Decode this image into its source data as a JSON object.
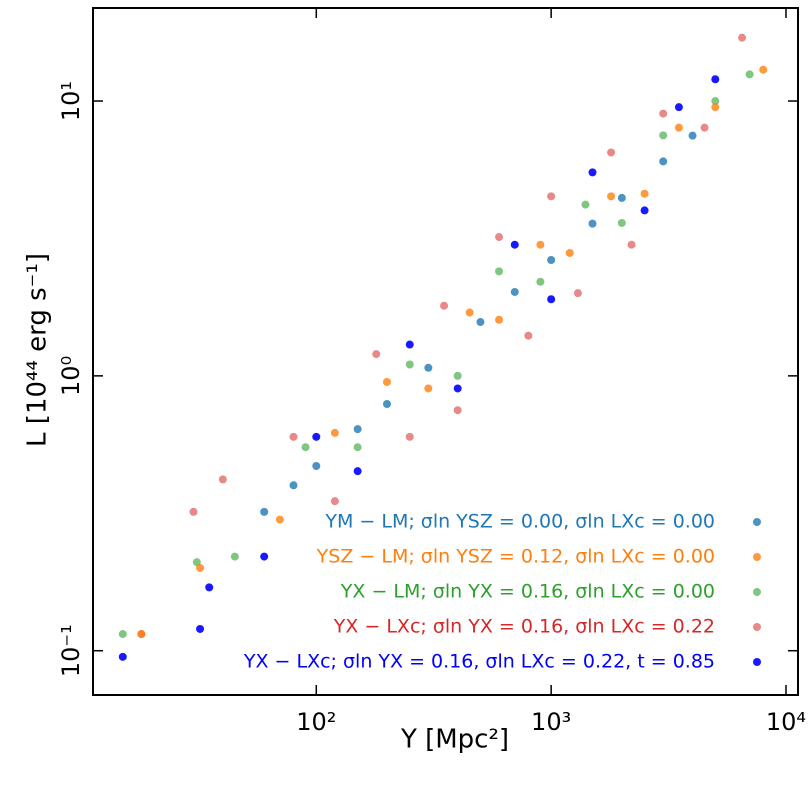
{
  "chart_data": {
    "type": "scatter",
    "x_label": "Y [Mpc²]",
    "y_label": "L [10⁴⁴ erg s⁻¹]",
    "xscale": "log",
    "yscale": "log",
    "xlim": [
      11.2,
      11250
    ],
    "ylim": [
      0.069,
      21.8
    ],
    "xticks": [
      {
        "value": 100,
        "label": "10²"
      },
      {
        "value": 1000,
        "label": "10³"
      },
      {
        "value": 10000,
        "label": "10⁴"
      }
    ],
    "yticks": [
      {
        "value": 0.1,
        "label": "10⁻¹"
      },
      {
        "value": 1,
        "label": "10⁰"
      },
      {
        "value": 10,
        "label": "10¹"
      }
    ],
    "legend": "lower right",
    "series": [
      {
        "name": "YX − LXc; σln YX = 0.16, σln LXc = 0.22",
        "color": "#d62728",
        "opacity": 0.55,
        "x": [
          18,
          30,
          40,
          80,
          120,
          180,
          250,
          350,
          400,
          600,
          800,
          1000,
          1300,
          1800,
          2200,
          3000,
          4500,
          6500
        ],
        "values": [
          0.115,
          0.32,
          0.42,
          0.6,
          0.35,
          1.2,
          0.6,
          1.8,
          0.75,
          3.2,
          1.4,
          4.5,
          2.0,
          6.5,
          3.0,
          9,
          8,
          17
        ]
      },
      {
        "name": "YX − LM; σln YX = 0.16, σln LXc = 0.00",
        "color": "#2ca02c",
        "opacity": 0.6,
        "x": [
          15,
          31,
          45,
          90,
          150,
          250,
          400,
          600,
          900,
          1400,
          2000,
          3000,
          5000,
          7000
        ],
        "values": [
          0.115,
          0.21,
          0.22,
          0.55,
          0.55,
          1.1,
          1.0,
          2.4,
          2.2,
          4.2,
          3.6,
          7.5,
          10,
          12.5
        ]
      },
      {
        "name": "YSZ − LM; σln YSZ = 0.12, σln LXc = 0.00",
        "color": "#ff7f0e",
        "opacity": 0.8,
        "x": [
          18,
          32,
          70,
          120,
          200,
          300,
          450,
          600,
          900,
          1200,
          1800,
          2500,
          3500,
          5000,
          8000
        ],
        "values": [
          0.115,
          0.2,
          0.3,
          0.62,
          0.95,
          0.9,
          1.7,
          1.6,
          3.0,
          2.8,
          4.5,
          4.6,
          8.0,
          9.5,
          13
        ]
      },
      {
        "name": "YM − LM; σln YSZ = 0.00, σln LXc = 0.00",
        "color": "#1f77b4",
        "opacity": 0.8,
        "x": [
          60,
          80,
          100,
          150,
          200,
          300,
          500,
          700,
          1000,
          1500,
          2000,
          3000,
          4000
        ],
        "values": [
          0.32,
          0.4,
          0.47,
          0.64,
          0.79,
          1.07,
          1.57,
          2.02,
          2.64,
          3.58,
          4.44,
          6.03,
          7.48
        ]
      },
      {
        "name": "YX − LXc; σln YX = 0.16, σln LXc = 0.22, t = 0.85",
        "color": "#0000ff",
        "opacity": 0.9,
        "x": [
          15,
          32,
          35,
          60,
          100,
          150,
          250,
          400,
          700,
          1000,
          1500,
          2500,
          3500,
          5000
        ],
        "values": [
          0.095,
          0.12,
          0.17,
          0.22,
          0.6,
          0.45,
          1.3,
          0.9,
          3.0,
          1.9,
          5.5,
          4.0,
          9.5,
          12
        ]
      }
    ],
    "legend_order": [
      3,
      2,
      1,
      0,
      4
    ]
  }
}
